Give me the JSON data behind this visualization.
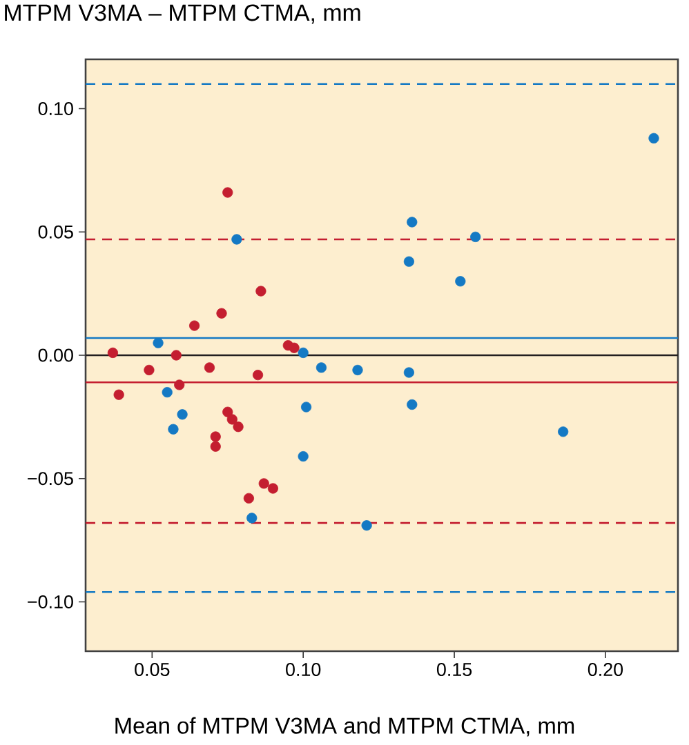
{
  "chart_data": {
    "type": "scatter",
    "ylabel": "MTPM V3MA – MTPM CTMA, mm",
    "xlabel": "Mean of MTPM V3MA and MTPM CTMA, mm",
    "xlim": [
      0.028,
      0.224
    ],
    "ylim": [
      -0.12,
      0.12
    ],
    "xticks": [
      {
        "value": 0.05,
        "label": "0.05"
      },
      {
        "value": 0.1,
        "label": "0.10"
      },
      {
        "value": 0.15,
        "label": "0.15"
      },
      {
        "value": 0.2,
        "label": "0.20"
      }
    ],
    "yticks": [
      {
        "value": -0.1,
        "label": "−0.10"
      },
      {
        "value": -0.05,
        "label": "−0.05"
      },
      {
        "value": 0,
        "label": "0.00"
      },
      {
        "value": 0.05,
        "label": "0.05"
      },
      {
        "value": 0.1,
        "label": "0.10"
      }
    ],
    "marker": "circle",
    "series": [
      {
        "color": "#1479c4",
        "x": [
          0.052,
          0.078,
          0.1,
          0.106,
          0.055,
          0.06,
          0.057,
          0.101,
          0.1,
          0.083,
          0.121,
          0.118,
          0.135,
          0.136,
          0.186,
          0.136,
          0.135,
          0.152,
          0.157,
          0.216
        ],
        "values": [
          0.005,
          0.047,
          0.001,
          -0.005,
          -0.015,
          -0.024,
          -0.03,
          -0.021,
          -0.041,
          -0.066,
          -0.069,
          -0.006,
          -0.007,
          -0.02,
          -0.031,
          0.054,
          0.038,
          0.03,
          0.048,
          0.088
        ]
      },
      {
        "color": "#c41e30",
        "x": [
          0.037,
          0.039,
          0.049,
          0.058,
          0.059,
          0.064,
          0.069,
          0.073,
          0.075,
          0.086,
          0.071,
          0.071,
          0.075,
          0.0765,
          0.0785,
          0.082,
          0.087,
          0.09,
          0.085,
          0.095,
          0.097
        ],
        "values": [
          0.001,
          -0.016,
          -0.006,
          0.0,
          -0.012,
          0.012,
          -0.005,
          0.017,
          0.066,
          0.026,
          -0.033,
          -0.037,
          -0.023,
          -0.026,
          -0.029,
          -0.058,
          -0.052,
          -0.054,
          -0.008,
          0.004,
          0.003
        ]
      }
    ],
    "ref_lines": [
      {
        "axis": "y",
        "value": 0,
        "color": "#231f20",
        "line_style": "solid"
      },
      {
        "axis": "y",
        "value": 0.007,
        "color": "#1479c4",
        "line_style": "solid"
      },
      {
        "axis": "y",
        "value": -0.011,
        "color": "#c41e30",
        "line_style": "solid"
      },
      {
        "axis": "y",
        "value": 0.11,
        "color": "#1479c4",
        "line_style": "dashed"
      },
      {
        "axis": "y",
        "value": -0.096,
        "color": "#1479c4",
        "line_style": "dashed"
      },
      {
        "axis": "y",
        "value": 0.047,
        "color": "#c41e30",
        "line_style": "dashed"
      },
      {
        "axis": "y",
        "value": -0.068,
        "color": "#c41e30",
        "line_style": "dashed"
      }
    ]
  }
}
